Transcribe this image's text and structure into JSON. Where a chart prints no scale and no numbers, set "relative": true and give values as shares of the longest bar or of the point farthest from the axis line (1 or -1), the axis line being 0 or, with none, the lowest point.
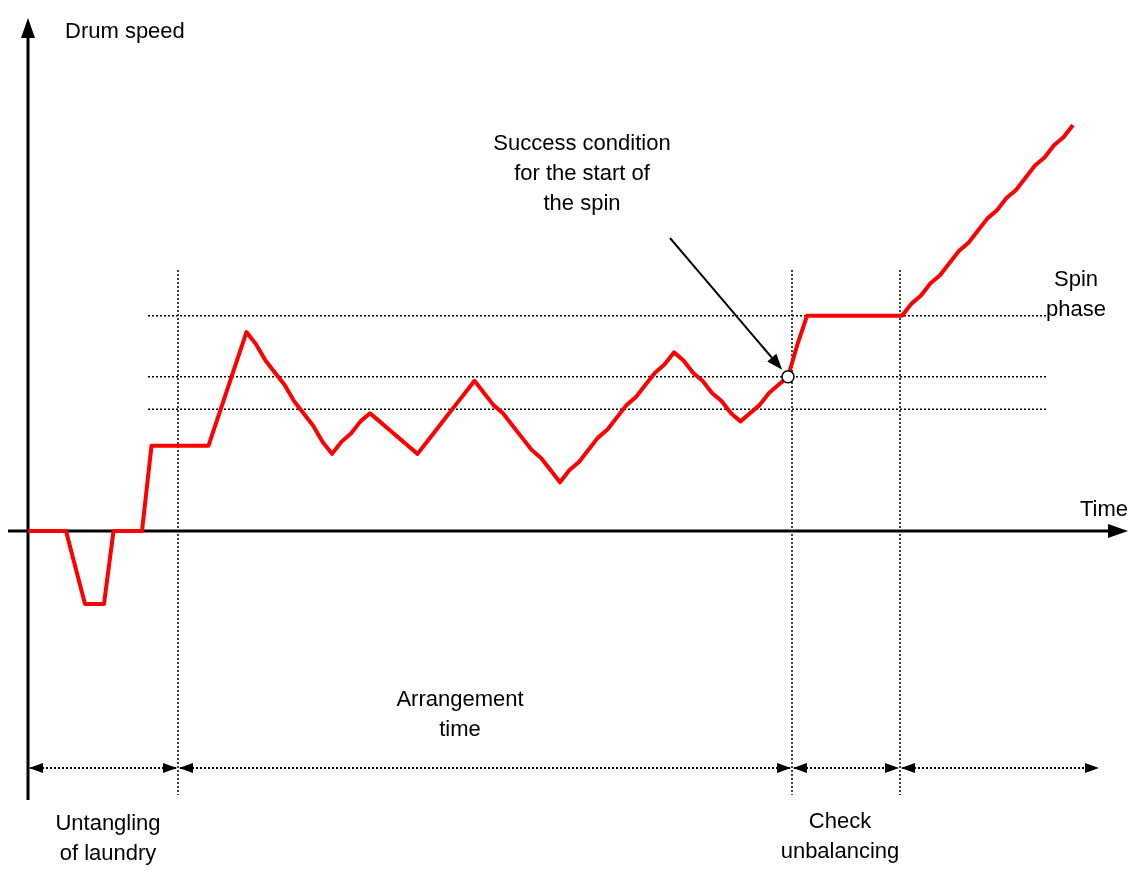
{
  "chart_data": {
    "type": "line",
    "relative": true,
    "ylabel": "Drum speed",
    "xlabel": "Time",
    "categories": [
      null,
      null,
      null,
      null,
      null,
      null,
      null,
      null,
      null,
      null,
      null,
      null,
      null,
      null,
      null,
      null,
      null,
      null,
      null,
      null,
      null,
      null,
      null,
      null,
      null,
      null,
      null,
      null,
      null,
      null,
      null,
      null,
      null,
      null,
      null,
      null,
      null,
      null,
      null,
      null,
      null,
      null,
      null,
      null,
      null,
      null,
      null,
      null,
      null,
      null,
      null,
      null,
      null,
      null,
      null,
      null,
      null,
      null,
      null,
      null,
      null,
      null,
      null,
      null,
      null,
      null,
      null,
      null,
      null,
      null,
      null,
      null,
      null,
      null,
      null,
      null,
      null,
      null,
      null,
      null,
      null,
      null,
      null,
      null,
      null,
      null,
      null,
      null,
      null,
      null,
      null,
      null,
      null,
      null,
      null,
      null,
      null,
      null,
      null,
      null,
      null,
      null,
      null,
      null,
      null,
      null,
      null,
      null,
      null,
      null,
      null
    ],
    "series": [
      {
        "color": "#ff0000",
        "values": [
          0,
          0,
          0,
          0,
          0,
          -0.09,
          -0.18,
          -0.18,
          -0.18,
          0,
          0,
          0,
          0,
          0.21,
          0.21,
          0.21,
          0.21,
          0.21,
          0.21,
          0.21,
          0.28,
          0.35,
          0.42,
          0.49,
          0.46,
          0.42,
          0.39,
          0.36,
          0.32,
          0.29,
          0.26,
          0.22,
          0.19,
          0.22,
          0.24,
          0.27,
          0.29,
          0.27,
          0.25,
          0.23,
          0.21,
          0.19,
          0.22,
          0.25,
          0.28,
          0.31,
          0.34,
          0.37,
          0.34,
          0.31,
          0.29,
          0.26,
          0.23,
          0.2,
          0.18,
          0.15,
          0.12,
          0.15,
          0.17,
          0.2,
          0.23,
          0.25,
          0.28,
          0.31,
          0.33,
          0.36,
          0.39,
          0.41,
          0.44,
          0.42,
          0.39,
          0.37,
          0.34,
          0.32,
          0.29,
          0.27,
          0.29,
          0.31,
          0.34,
          0.36,
          0.38,
          0.46,
          0.53,
          0.53,
          0.53,
          0.53,
          0.53,
          0.53,
          0.53,
          0.53,
          0.53,
          0.53,
          0.53,
          0.56,
          0.58,
          0.61,
          0.63,
          0.66,
          0.69,
          0.71,
          0.74,
          0.77,
          0.79,
          0.82,
          0.84,
          0.87,
          0.9,
          0.92,
          0.95,
          0.97,
          1
        ]
      }
    ],
    "ref_lines": [
      {
        "axis": "y",
        "value": 0.53,
        "line_style": "dotted",
        "color": "#000000"
      },
      {
        "axis": "y",
        "value": 0.3,
        "line_style": "dotted",
        "color": "#000000"
      },
      {
        "axis": "y",
        "value": 0.38,
        "line_style": "dotted",
        "color": "#000000"
      }
    ],
    "annotations": [
      "Success condition for the start of the spin",
      "Untangling of laundry",
      "Arrangement time",
      "Check unbalancing",
      "Spin phase"
    ]
  }
}
